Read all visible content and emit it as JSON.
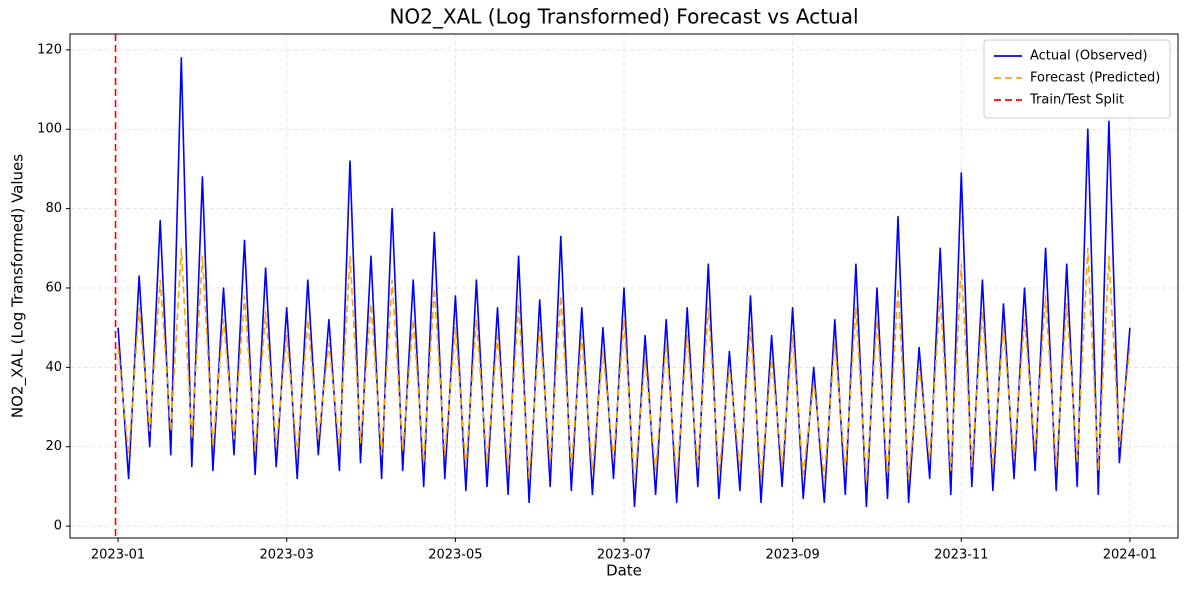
{
  "chart_data": {
    "type": "line",
    "title": "NO2_XAL (Log Transformed) Forecast vs Actual",
    "xlabel": "Date",
    "ylabel": "NO2_XAL (Log Transformed) Values",
    "x": [
      0,
      0.125,
      0.25,
      0.375,
      0.5,
      0.625,
      0.75,
      0.875,
      1,
      1.125,
      1.25,
      1.375,
      1.5,
      1.625,
      1.75,
      1.875,
      2,
      2.125,
      2.25,
      2.375,
      2.5,
      2.625,
      2.75,
      2.875,
      3,
      3.125,
      3.25,
      3.375,
      3.5,
      3.625,
      3.75,
      3.875,
      4,
      4.125,
      4.25,
      4.375,
      4.5,
      4.625,
      4.75,
      4.875,
      5,
      5.125,
      5.25,
      5.375,
      5.5,
      5.625,
      5.75,
      5.875,
      6,
      6.125,
      6.25,
      6.375,
      6.5,
      6.625,
      6.75,
      6.875,
      7,
      7.125,
      7.25,
      7.375,
      7.5,
      7.625,
      7.75,
      7.875,
      8,
      8.125,
      8.25,
      8.375,
      8.5,
      8.625,
      8.75,
      8.875,
      9,
      9.125,
      9.25,
      9.375,
      9.5,
      9.625,
      9.75,
      9.875,
      10,
      10.125,
      10.25,
      10.375,
      10.5,
      10.625,
      10.75,
      10.875,
      11,
      11.125,
      11.25,
      11.375,
      11.5,
      11.625,
      11.75,
      11.875,
      12
    ],
    "series": [
      {
        "name": "Actual (Observed)",
        "color": "#0000ff",
        "style": "solid",
        "values": [
          50,
          12,
          63,
          20,
          77,
          18,
          118,
          15,
          88,
          14,
          60,
          18,
          72,
          13,
          65,
          15,
          55,
          12,
          62,
          18,
          52,
          14,
          92,
          16,
          68,
          12,
          80,
          14,
          62,
          10,
          74,
          12,
          58,
          9,
          62,
          10,
          55,
          8,
          68,
          6,
          57,
          10,
          73,
          9,
          55,
          8,
          50,
          12,
          60,
          5,
          48,
          8,
          52,
          6,
          55,
          10,
          66,
          7,
          44,
          9,
          58,
          6,
          48,
          10,
          55,
          7,
          40,
          6,
          52,
          8,
          66,
          5,
          60,
          7,
          78,
          6,
          45,
          12,
          70,
          8,
          89,
          10,
          62,
          9,
          56,
          12,
          60,
          14,
          70,
          9,
          66,
          10,
          100,
          8,
          102,
          16,
          50
        ]
      },
      {
        "name": "Forecast (Predicted)",
        "color": "#ffa500",
        "style": "dashed",
        "values": [
          45,
          18,
          55,
          24,
          62,
          24,
          70,
          22,
          68,
          20,
          52,
          22,
          58,
          19,
          54,
          20,
          48,
          18,
          52,
          22,
          46,
          20,
          68,
          21,
          56,
          18,
          62,
          19,
          52,
          16,
          60,
          18,
          50,
          15,
          52,
          16,
          48,
          14,
          56,
          12,
          50,
          16,
          58,
          15,
          48,
          14,
          44,
          17,
          52,
          11,
          42,
          14,
          46,
          12,
          48,
          15,
          55,
          13,
          40,
          15,
          50,
          12,
          42,
          15,
          48,
          13,
          36,
          12,
          46,
          14,
          55,
          11,
          52,
          13,
          60,
          12,
          40,
          17,
          58,
          14,
          66,
          15,
          54,
          15,
          50,
          17,
          52,
          19,
          58,
          15,
          56,
          16,
          70,
          14,
          68,
          20,
          45
        ]
      }
    ],
    "vlines": [
      {
        "name": "Train/Test Split",
        "color": "#ff0000",
        "style": "dashed",
        "x": -0.03
      }
    ],
    "xlim": [
      -0.57,
      12.57
    ],
    "ylim": [
      -3,
      124
    ],
    "xticks": [
      {
        "value": 0,
        "label": "2023-01"
      },
      {
        "value": 2,
        "label": "2023-03"
      },
      {
        "value": 4,
        "label": "2023-05"
      },
      {
        "value": 6,
        "label": "2023-07"
      },
      {
        "value": 8,
        "label": "2023-09"
      },
      {
        "value": 10,
        "label": "2023-11"
      },
      {
        "value": 12,
        "label": "2024-01"
      }
    ],
    "yticks": [
      0,
      20,
      40,
      60,
      80,
      100,
      120
    ],
    "grid": true,
    "legend": "upper-right"
  }
}
